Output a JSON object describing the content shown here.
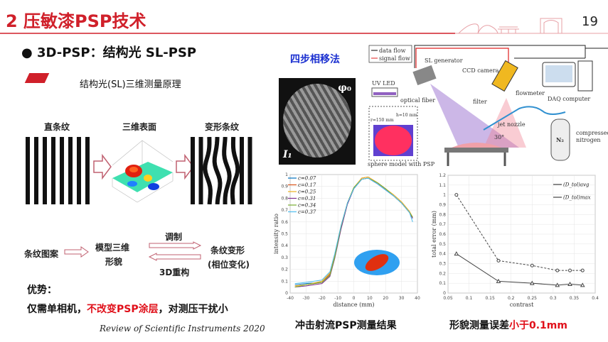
{
  "header": {
    "title": "2 压敏漆PSP技术",
    "page_number": "19",
    "accent": "#d0202a"
  },
  "bullet": "●  3D-PSP：结构光 SL-PSP",
  "section": {
    "label": "结构光(SL)三维测量原理"
  },
  "principle": {
    "straight": "直条纹",
    "surface": "三维表面",
    "deformed": "变形条纹"
  },
  "flow": {
    "pattern": "条纹图案",
    "model_line1": "模型三维",
    "model_line2": "形貌",
    "modulate": "调制",
    "deform": "条纹变形",
    "phase": "(相位变化)",
    "reconstruct": "3D重构"
  },
  "advantage": {
    "heading": "优势：",
    "part1": "仅需单相机，",
    "part2": "不改变PSP涂层",
    "part3": "，对测压干扰小"
  },
  "reference": "Review of Scientific Instruments 2020",
  "method": {
    "title": "四步相移法",
    "phi": "φ₀",
    "I": "I₁"
  },
  "schematic": {
    "data_flow": "data flow",
    "signal_flow": "signal flow",
    "sl_generator": "SL generator",
    "ccd_camera": "CCD camera",
    "uv_led": "UV LED",
    "optical_fiber": "optical fiber",
    "filter": "filter",
    "flowmeter": "flowmeter",
    "daq": "DAQ computer",
    "jet_nozzle": "jet nozzle",
    "angle": "30°",
    "nitrogen_line1": "compressed",
    "nitrogen_line2": "nitrogen",
    "n2": "N₂",
    "sphere": "sphere model with PSP",
    "r": "r=150 mm",
    "h": "h=10 mm"
  },
  "captions": {
    "left": "冲击射流PSP测量结果",
    "right_part1": "形貌测量误差",
    "right_part2": "小于0.1mm"
  },
  "chart_data": [
    {
      "type": "line",
      "xlabel": "distance (mm)",
      "ylabel": "intensity ratio",
      "xlim": [
        -40,
        40
      ],
      "ylim": [
        0,
        1
      ],
      "xticks": [
        -40,
        -30,
        -20,
        -10,
        0,
        10,
        20,
        30,
        40
      ],
      "yticks": [
        0,
        0.1,
        0.2,
        0.3,
        0.4,
        0.5,
        0.6,
        0.7,
        0.8,
        0.9,
        1
      ],
      "grid": true,
      "legend": "top-left",
      "x": [
        -37,
        -30,
        -20,
        -15,
        -12,
        -8,
        -4,
        0,
        5,
        9,
        15,
        20,
        25,
        30,
        35,
        37
      ],
      "series": [
        {
          "name": "c=0.07",
          "color": "#0072bd",
          "values": [
            0.07,
            0.08,
            0.09,
            0.15,
            0.3,
            0.55,
            0.75,
            0.88,
            0.96,
            0.97,
            0.92,
            0.87,
            0.82,
            0.76,
            0.68,
            0.63
          ]
        },
        {
          "name": "c=0.17",
          "color": "#d95319",
          "values": [
            0.06,
            0.07,
            0.09,
            0.16,
            0.31,
            0.56,
            0.76,
            0.88,
            0.97,
            0.98,
            0.93,
            0.88,
            0.82,
            0.76,
            0.68,
            0.64
          ]
        },
        {
          "name": "c=0.25",
          "color": "#edb120",
          "values": [
            0.06,
            0.07,
            0.1,
            0.17,
            0.32,
            0.57,
            0.76,
            0.89,
            0.97,
            0.98,
            0.93,
            0.88,
            0.83,
            0.77,
            0.69,
            0.64
          ]
        },
        {
          "name": "c=0.31",
          "color": "#7e2f8e",
          "values": [
            0.05,
            0.06,
            0.08,
            0.14,
            0.29,
            0.54,
            0.75,
            0.88,
            0.96,
            0.97,
            0.92,
            0.87,
            0.82,
            0.76,
            0.68,
            0.63
          ]
        },
        {
          "name": "c=0.34",
          "color": "#77ac30",
          "values": [
            0.05,
            0.07,
            0.09,
            0.15,
            0.3,
            0.56,
            0.76,
            0.89,
            0.96,
            0.97,
            0.93,
            0.88,
            0.82,
            0.76,
            0.68,
            0.64
          ]
        },
        {
          "name": "c=0.37",
          "color": "#4dbeee",
          "values": [
            0.08,
            0.09,
            0.11,
            0.18,
            0.33,
            0.57,
            0.76,
            0.88,
            0.96,
            0.97,
            0.92,
            0.87,
            0.82,
            0.76,
            0.68,
            0.6
          ]
        }
      ]
    },
    {
      "type": "line",
      "xlabel": "contrast",
      "ylabel": "total error (mm)",
      "xlim": [
        0.05,
        0.4
      ],
      "ylim": [
        0,
        1.2
      ],
      "xticks": [
        0.05,
        0.1,
        0.15,
        0.2,
        0.25,
        0.3,
        0.35,
        0.4
      ],
      "yticks": [
        0,
        0.1,
        0.2,
        0.3,
        0.4,
        0.5,
        0.6,
        0.7,
        0.8,
        0.9,
        1,
        1.1,
        1.2
      ],
      "grid": true,
      "legend": "top-right",
      "x": [
        0.07,
        0.17,
        0.25,
        0.31,
        0.34,
        0.37
      ],
      "series": [
        {
          "name": "(D_tol)avg",
          "marker": "triangle",
          "values": [
            0.4,
            0.12,
            0.1,
            0.08,
            0.09,
            0.08
          ]
        },
        {
          "name": "(D_tol)max",
          "marker": "circle",
          "dashed": true,
          "values": [
            1.0,
            0.33,
            0.28,
            0.23,
            0.23,
            0.23
          ]
        }
      ]
    }
  ]
}
